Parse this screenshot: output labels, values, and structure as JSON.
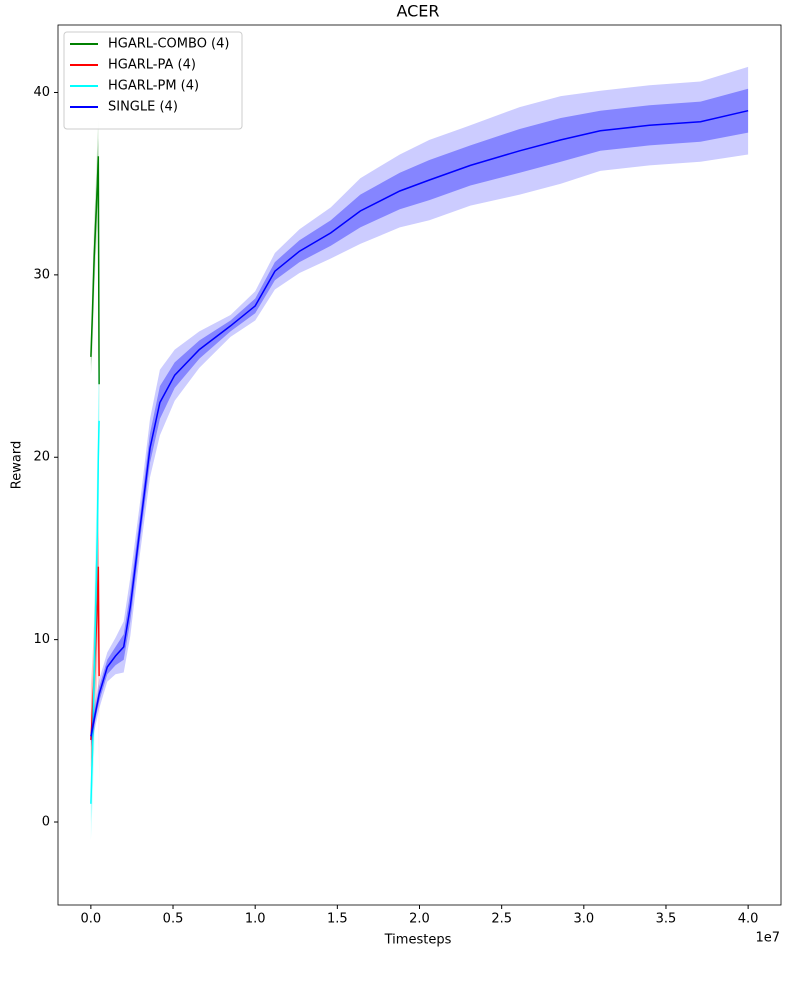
{
  "chart_data": {
    "type": "line",
    "title": "ACER",
    "x_label": "Timesteps",
    "y_label": "Reward",
    "x_offset_label": "1e7",
    "xlim": [
      -0.2,
      4.2
    ],
    "ylim": [
      -4.55,
      43.7
    ],
    "xticks": [
      {
        "value": 0,
        "label": "0.0"
      },
      {
        "value": 0.5,
        "label": "0.5"
      },
      {
        "value": 1,
        "label": "1.0"
      },
      {
        "value": 1.5,
        "label": "1.5"
      },
      {
        "value": 2,
        "label": "2.0"
      },
      {
        "value": 2.5,
        "label": "2.5"
      },
      {
        "value": 3,
        "label": "3.0"
      },
      {
        "value": 3.5,
        "label": "3.5"
      },
      {
        "value": 4,
        "label": "4.0"
      }
    ],
    "yticks": [
      0,
      10,
      20,
      30,
      40
    ],
    "legend": "upper left",
    "series": [
      {
        "name": "HGARL-COMBO (4)",
        "color": "#008000",
        "x": [
          0,
          0.01,
          0.02,
          0.03,
          0.04,
          0.045,
          0.05
        ],
        "values": [
          25.5,
          28,
          31,
          33,
          35,
          36.5,
          24
        ],
        "std": [
          0.5,
          1,
          1,
          1,
          1.2,
          1,
          2
        ]
      },
      {
        "name": "HGARL-PA (4)",
        "color": "#ff0000",
        "x": [
          0,
          0.01,
          0.02,
          0.03,
          0.04,
          0.045,
          0.05
        ],
        "values": [
          4.5,
          6,
          8,
          10,
          12,
          14,
          8
        ],
        "std": [
          1.5,
          1.5,
          1.5,
          2,
          2,
          2,
          3
        ]
      },
      {
        "name": "HGARL-PM (4)",
        "color": "#00ffff",
        "x": [
          0,
          0.01,
          0.02,
          0.03,
          0.04,
          0.045,
          0.05
        ],
        "values": [
          1,
          4,
          8,
          12,
          16,
          20,
          22
        ],
        "std": [
          1,
          1.5,
          2,
          2,
          2,
          2,
          2
        ]
      },
      {
        "name": "SINGLE (4)",
        "color": "#0000ff",
        "x": [
          0,
          0.05,
          0.1,
          0.15,
          0.2,
          0.24,
          0.3,
          0.36,
          0.42,
          0.51,
          0.66,
          0.85,
          1.0,
          1.12,
          1.27,
          1.46,
          1.64,
          1.88,
          2.06,
          2.31,
          2.61,
          2.86,
          3.1,
          3.4,
          3.71,
          4.0
        ],
        "values": [
          4.7,
          7.0,
          8.5,
          9.1,
          9.6,
          11.8,
          16.2,
          20.5,
          23.0,
          24.5,
          25.9,
          27.2,
          28.3,
          30.2,
          31.3,
          32.3,
          33.5,
          34.6,
          35.2,
          36.0,
          36.8,
          37.4,
          37.9,
          38.2,
          38.4,
          39.0
        ],
        "std": [
          0.3,
          0.4,
          0.4,
          0.5,
          0.7,
          0.8,
          0.7,
          0.8,
          0.9,
          0.7,
          0.5,
          0.3,
          0.4,
          0.5,
          0.6,
          0.7,
          0.9,
          1.0,
          1.1,
          1.1,
          1.2,
          1.2,
          1.1,
          1.1,
          1.1,
          1.2
        ]
      }
    ]
  }
}
